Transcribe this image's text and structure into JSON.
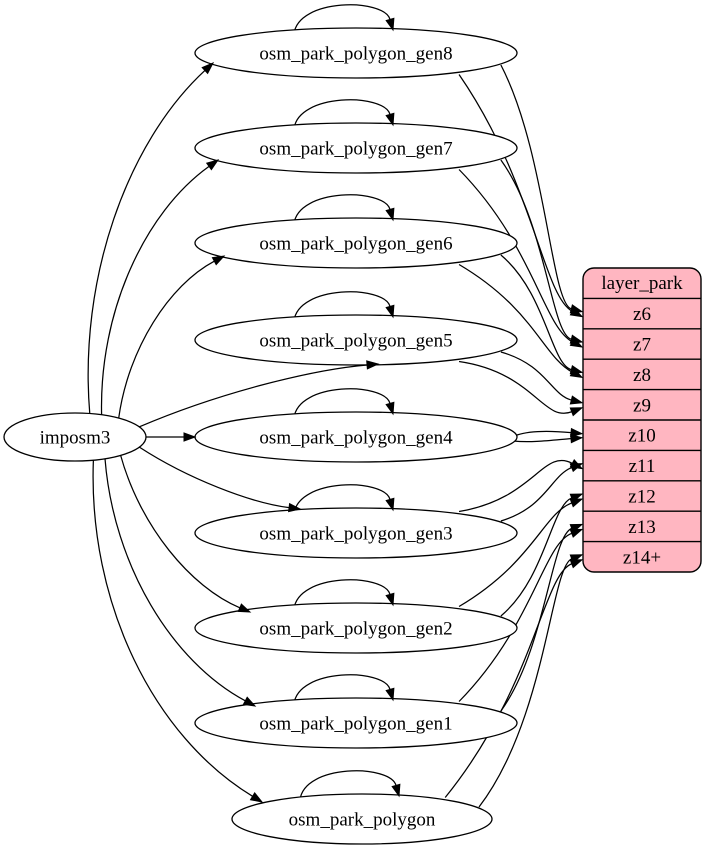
{
  "diagram": {
    "background": "#ffffff",
    "edge_color": "#000000",
    "node_fill": "#ffffff",
    "node_stroke": "#000000",
    "text_color": "#000000",
    "source": {
      "label": "imposm3"
    },
    "tables": [
      {
        "label": "osm_park_polygon_gen8",
        "zoom": "z6"
      },
      {
        "label": "osm_park_polygon_gen7",
        "zoom": "z7"
      },
      {
        "label": "osm_park_polygon_gen6",
        "zoom": "z8"
      },
      {
        "label": "osm_park_polygon_gen5",
        "zoom": "z9"
      },
      {
        "label": "osm_park_polygon_gen4",
        "zoom": "z10"
      },
      {
        "label": "osm_park_polygon_gen3",
        "zoom": "z11"
      },
      {
        "label": "osm_park_polygon_gen2",
        "zoom": "z12"
      },
      {
        "label": "osm_park_polygon_gen1",
        "zoom": "z13"
      },
      {
        "label": "osm_park_polygon",
        "zoom": "z14+"
      }
    ],
    "record": {
      "title": "layer_park",
      "rows": [
        "z6",
        "z7",
        "z8",
        "z9",
        "z10",
        "z11",
        "z12",
        "z13",
        "z14+"
      ],
      "fill": "#ffb6c1",
      "stroke": "#000000"
    },
    "connections": {
      "source_to_every_table": true,
      "self_loop_on_every_table": true,
      "edges_per_table_to_zoom_row": 2
    }
  }
}
